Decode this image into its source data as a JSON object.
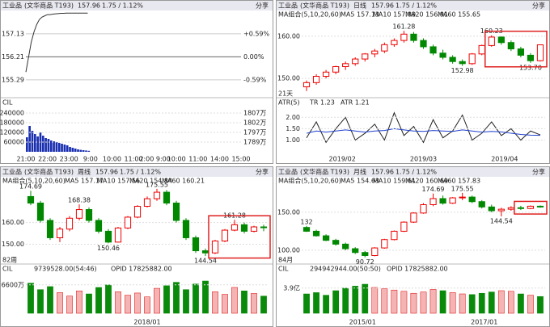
{
  "panels": [
    {
      "header": {
        "name": "工业品",
        "source": "(文华商品 T193)",
        "price": "157.96",
        "change": "1.75 / 1.12%",
        "share": "分享"
      },
      "ylim": [
        154.67,
        158.0
      ],
      "yticks": [
        157.13,
        156.21,
        155.29
      ],
      "right_labels": [
        "+0.59%",
        "0.00%",
        "-0.59%"
      ],
      "price": [
        155.6,
        156.2,
        156.8,
        157.2,
        157.5,
        157.7,
        157.8,
        157.85,
        157.9,
        157.9,
        157.92,
        157.93,
        157.94,
        157.95,
        157.95,
        157.96,
        157.96,
        157.96,
        157.96,
        157.96,
        157.96,
        157.96,
        157.96,
        157.96
      ],
      "sub_title": "CIL",
      "sub_ylim": [
        0,
        270000
      ],
      "sub_yticks": [
        240000,
        180000,
        120000,
        60000
      ],
      "sub_right_labels": [
        "1807万",
        "1802万",
        "1797万",
        "1789万"
      ],
      "volume": [
        90000,
        160000,
        130000,
        110000,
        95000,
        120000,
        100000,
        85000,
        80000,
        70000,
        65000,
        60000,
        55000,
        50000,
        45000,
        40000,
        30000,
        25000,
        20000,
        15000,
        12000,
        10000,
        8000,
        6000
      ],
      "x_labels": [
        "21:00",
        "22:00",
        "23:00",
        "9:00",
        "10:00",
        "11:00",
        "2:00 9:00",
        "10:00",
        "11:00",
        "14:00",
        "15:00"
      ]
    },
    {
      "header": {
        "name": "工业品",
        "source": "(文华商品 T193)",
        "period": "日线",
        "price": "157.96",
        "change": "1.75 / 1.12%",
        "share": "分享"
      },
      "ma_label": "MA组合(5,10,20,60)",
      "ma": [
        "MA5 157.13",
        "MA10 157.89",
        "MA20 156.91",
        "MA60 155.65"
      ],
      "ylim": [
        146,
        164
      ],
      "yticks": [
        {
          "value": 160,
          "label": "160.00"
        },
        {
          "value": 150,
          "label": "150.00"
        }
      ],
      "candles": [
        [
          148,
          149.5,
          147,
          149
        ],
        [
          149,
          151,
          148.5,
          150.5
        ],
        [
          150.5,
          152,
          150,
          151.5
        ],
        [
          151.5,
          153,
          151,
          152.8
        ],
        [
          152.8,
          154,
          152,
          153.5
        ],
        [
          153.5,
          155,
          153,
          154.6
        ],
        [
          154.6,
          156,
          154,
          155.8
        ],
        [
          155.8,
          157,
          155,
          156.5
        ],
        [
          156.5,
          158.5,
          156,
          158
        ],
        [
          158,
          159.5,
          157.5,
          159
        ],
        [
          159,
          161.28,
          158.5,
          160.5
        ],
        [
          160.5,
          161,
          158.5,
          159
        ],
        [
          159,
          159.5,
          157,
          157.5
        ],
        [
          157.5,
          158,
          155.5,
          156
        ],
        [
          156,
          156.8,
          154.5,
          155
        ],
        [
          155,
          155.5,
          153.5,
          154
        ],
        [
          154,
          154.5,
          152.98,
          153.5
        ],
        [
          153.5,
          156,
          153.2,
          155.8
        ],
        [
          155.8,
          158,
          155.5,
          157.8
        ],
        [
          157.8,
          160.23,
          157.5,
          159.8
        ],
        [
          159.8,
          160,
          158,
          158.5
        ],
        [
          158.5,
          159,
          156.5,
          157
        ],
        [
          157,
          157.5,
          155,
          155.5
        ],
        [
          155.5,
          156,
          153.7,
          154.2
        ],
        [
          154.2,
          158,
          154,
          157.96
        ]
      ],
      "annotations": [
        {
          "value": 161.28,
          "label": "161.28"
        },
        {
          "value": 160.23,
          "label": "160.23"
        },
        {
          "value": 152.98,
          "label": "152.98"
        },
        {
          "value": 153.7,
          "label": "153.70"
        }
      ],
      "count_label": "21天",
      "sub_title": "ATR(5)",
      "sub_texts": [
        "TR 1.23",
        "ATR 1.21"
      ],
      "sub_ylim": [
        0.7,
        2.4
      ],
      "sub_yticks": [
        {
          "value": 2,
          "label": "2.00"
        },
        {
          "value": 1.5,
          "label": "1.50"
        },
        {
          "value": 1,
          "label": "1.00"
        }
      ],
      "sub_values": [
        1.1,
        1.8,
        0.9,
        1.5,
        2.0,
        1.0,
        1.3,
        1.7,
        1.0,
        2.2,
        1.2,
        1.6,
        0.9,
        1.9,
        1.1,
        1.4,
        2.1,
        1.0,
        1.3,
        1.8,
        1.2,
        1.5,
        1.0,
        1.4,
        1.23
      ],
      "sub_values2": [
        1.3,
        1.4,
        1.35,
        1.4,
        1.45,
        1.4,
        1.35,
        1.4,
        1.42,
        1.5,
        1.45,
        1.4,
        1.38,
        1.42,
        1.4,
        1.38,
        1.45,
        1.4,
        1.35,
        1.38,
        1.36,
        1.3,
        1.25,
        1.22,
        1.21
      ],
      "x_labels": [
        "2019/02",
        "2019/03",
        "2019/04"
      ]
    },
    {
      "header": {
        "name": "工业品",
        "source": "(文华商品 T193)",
        "period": "周线",
        "price": "157.96",
        "change": "1.75 / 1.12%",
        "share": "分享"
      },
      "ma_label": "MA组合(5,10,20,60)",
      "ma": [
        "MA5 157.17",
        "MA10 157.56",
        "MA20 154.84",
        "MA60 160.21"
      ],
      "ylim": [
        142,
        177
      ],
      "yticks": [
        {
          "value": 160,
          "label": "160.00"
        },
        {
          "value": 150,
          "label": "150.00"
        }
      ],
      "candles": [
        [
          172,
          174.69,
          168,
          169
        ],
        [
          169,
          170,
          160,
          161
        ],
        [
          161,
          162,
          152,
          153
        ],
        [
          153,
          158,
          151,
          157
        ],
        [
          157,
          163,
          156,
          162
        ],
        [
          162,
          168.38,
          161,
          166
        ],
        [
          166,
          167,
          160,
          161
        ],
        [
          161,
          162,
          155,
          156
        ],
        [
          156,
          157,
          150.46,
          151
        ],
        [
          151,
          158,
          150.8,
          157.5
        ],
        [
          157.5,
          163,
          157,
          162.5
        ],
        [
          162.5,
          168,
          162,
          167.5
        ],
        [
          167.5,
          172,
          167,
          171
        ],
        [
          171,
          175.55,
          170,
          174
        ],
        [
          174,
          175,
          168,
          169
        ],
        [
          169,
          170,
          160,
          161
        ],
        [
          161,
          162,
          152,
          153
        ],
        [
          153,
          154,
          146,
          147
        ],
        [
          147,
          148,
          144.54,
          146
        ],
        [
          146,
          152,
          145.5,
          151.5
        ],
        [
          151.5,
          157,
          151,
          156.5
        ],
        [
          156.5,
          161.28,
          156,
          159
        ],
        [
          159,
          160,
          155,
          156
        ],
        [
          156,
          158.5,
          155.5,
          158
        ],
        [
          158,
          159,
          156,
          157.96
        ]
      ],
      "annotations": [
        {
          "value": 174.69,
          "label": "174.69"
        },
        {
          "value": 168.38,
          "label": "168.38"
        },
        {
          "value": 175.55,
          "label": "175.55"
        },
        {
          "value": 161.28,
          "label": "161.28"
        },
        {
          "value": 150.46,
          "label": "150.46"
        },
        {
          "value": 144.54,
          "label": "144.54"
        }
      ],
      "count_label": "82周",
      "sub_title": "CIL",
      "sub_texts": [
        "9739528.00(54:46)",
        "OPID 17825882.00"
      ],
      "sub_ylim": [
        0,
        90000000
      ],
      "sub_yticks": [
        {
          "value": 66000000,
          "label": "6600万"
        }
      ],
      "volume": [
        70000000,
        55000000,
        62000000,
        48000000,
        40000000,
        52000000,
        45000000,
        60000000,
        66000000,
        50000000,
        42000000,
        47000000,
        38000000,
        58000000,
        64000000,
        72000000,
        55000000,
        68000000,
        75000000,
        50000000,
        44000000,
        60000000,
        52000000,
        46000000,
        40000000
      ],
      "x_labels": [
        "2018/01"
      ]
    },
    {
      "header": {
        "name": "工业品",
        "source": "(文华商品 T193)",
        "period": "月线",
        "price": "157.96",
        "change": "1.75 / 1.12%",
        "share": "分享"
      },
      "ma_label": "MA组合(5,10,20,60)",
      "ma": [
        "MA5 154.63",
        "MA10 159.61",
        "MA20 160.69",
        "MA60 157.83"
      ],
      "ylim": [
        85,
        185
      ],
      "yticks": [
        {
          "value": 150,
          "label": "150.00"
        },
        {
          "value": 100,
          "label": "100.00"
        }
      ],
      "candles": [
        [
          130,
          132,
          124,
          125
        ],
        [
          125,
          127,
          118,
          119
        ],
        [
          119,
          121,
          112,
          113
        ],
        [
          113,
          115,
          106,
          108
        ],
        [
          108,
          110,
          100,
          102
        ],
        [
          102,
          104,
          95,
          97
        ],
        [
          97,
          99,
          90.72,
          93
        ],
        [
          93,
          104,
          92,
          103
        ],
        [
          103,
          115,
          102,
          114
        ],
        [
          114,
          126,
          113,
          125
        ],
        [
          125,
          138,
          124,
          137
        ],
        [
          137,
          150,
          136,
          149
        ],
        [
          149,
          162,
          148,
          160
        ],
        [
          160,
          174.69,
          158,
          168
        ],
        [
          168,
          172,
          160,
          162
        ],
        [
          162,
          170,
          161,
          169
        ],
        [
          169,
          175.55,
          166,
          170
        ],
        [
          170,
          172,
          162,
          164
        ],
        [
          164,
          166,
          155,
          157
        ],
        [
          157,
          160,
          150,
          152
        ],
        [
          152,
          156,
          144.54,
          154
        ],
        [
          154,
          158,
          152,
          156
        ],
        [
          156,
          158.5,
          153,
          155
        ],
        [
          155,
          159,
          154,
          158
        ],
        [
          158,
          159,
          156,
          157.96
        ]
      ],
      "annotations": [
        {
          "value": 132,
          "label": "132"
        },
        {
          "value": 174.69,
          "label": "174.69"
        },
        {
          "value": 175.55,
          "label": "175.55"
        },
        {
          "value": 144.54,
          "label": "144.54"
        },
        {
          "value": 90.72,
          "label": "90.72"
        }
      ],
      "count_label": "84月",
      "sub_title": "CIL",
      "sub_texts": [
        "294942944.00(50:50)",
        "OPID 17825882.00"
      ],
      "sub_ylim": [
        0,
        600000000
      ],
      "sub_yticks": [
        {
          "value": 390000000,
          "label": "3.9亿"
        }
      ],
      "volume": [
        300000000,
        320000000,
        280000000,
        350000000,
        390000000,
        420000000,
        450000000,
        400000000,
        380000000,
        360000000,
        340000000,
        310000000,
        330000000,
        370000000,
        350000000,
        320000000,
        300000000,
        290000000,
        310000000,
        330000000,
        350000000,
        340000000,
        300000000,
        280000000,
        260000000
      ],
      "x_labels": [
        "2015/01",
        "2017/01"
      ]
    }
  ]
}
